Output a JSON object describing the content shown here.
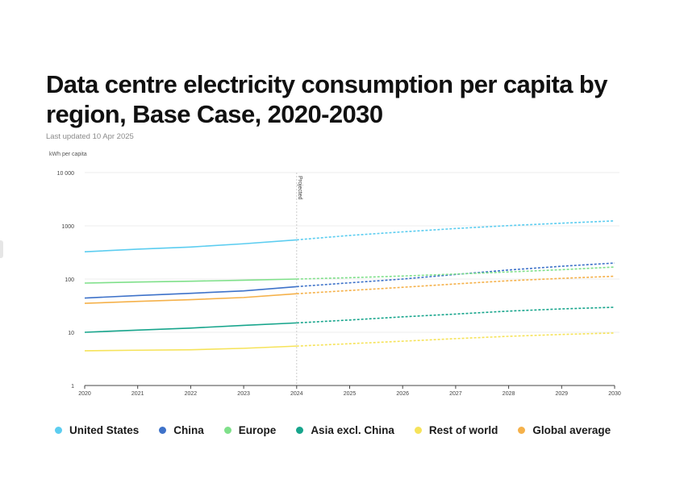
{
  "header": {
    "title": "Data centre electricity consumption per capita by region, Base Case, 2020-2030",
    "updated": "Last updated 10 Apr 2025"
  },
  "chart_data": {
    "type": "line",
    "title": "Data centre electricity consumption per capita by region, Base Case, 2020-2030",
    "ylabel": "kWh per capita",
    "xlabel": "",
    "y_scale": "log",
    "ylim": [
      1,
      10000
    ],
    "y_ticks": [
      1,
      10,
      100,
      1000,
      10000
    ],
    "y_tick_labels": [
      "1",
      "10",
      "100",
      "1000",
      "10 000"
    ],
    "x": [
      2020,
      2021,
      2022,
      2023,
      2024,
      2025,
      2026,
      2027,
      2028,
      2029,
      2030
    ],
    "x_tick_labels": [
      "2020",
      "2021",
      "2022",
      "2023",
      "2024",
      "2025",
      "2026",
      "2027",
      "2028",
      "2029",
      "2030"
    ],
    "projection_start": 2024,
    "projection_label": "Projected",
    "grid": true,
    "legend_position": "bottom",
    "series": [
      {
        "name": "United States",
        "color": "#5ccdf0",
        "values": [
          325,
          365,
          400,
          460,
          545,
          660,
          770,
          890,
          1010,
          1120,
          1240
        ]
      },
      {
        "name": "China",
        "color": "#3e72c9",
        "values": [
          44,
          49,
          54,
          60,
          72,
          85,
          100,
          122,
          148,
          174,
          200
        ]
      },
      {
        "name": "Europe",
        "color": "#7fe08a",
        "values": [
          84,
          88,
          91,
          95,
          100,
          106,
          114,
          124,
          136,
          150,
          168
        ]
      },
      {
        "name": "Asia excl. China",
        "color": "#17a58c",
        "values": [
          10,
          11,
          12,
          13.5,
          15,
          17,
          19.5,
          22,
          25,
          27.5,
          29.5
        ]
      },
      {
        "name": "Rest of world",
        "color": "#f6e35a",
        "values": [
          4.5,
          4.6,
          4.7,
          5.0,
          5.5,
          6.1,
          6.8,
          7.6,
          8.4,
          9.1,
          9.7
        ]
      },
      {
        "name": "Global average",
        "color": "#f5b14a",
        "values": [
          35,
          38,
          41,
          45,
          53,
          61,
          70,
          81,
          93,
          103,
          113
        ]
      }
    ]
  }
}
